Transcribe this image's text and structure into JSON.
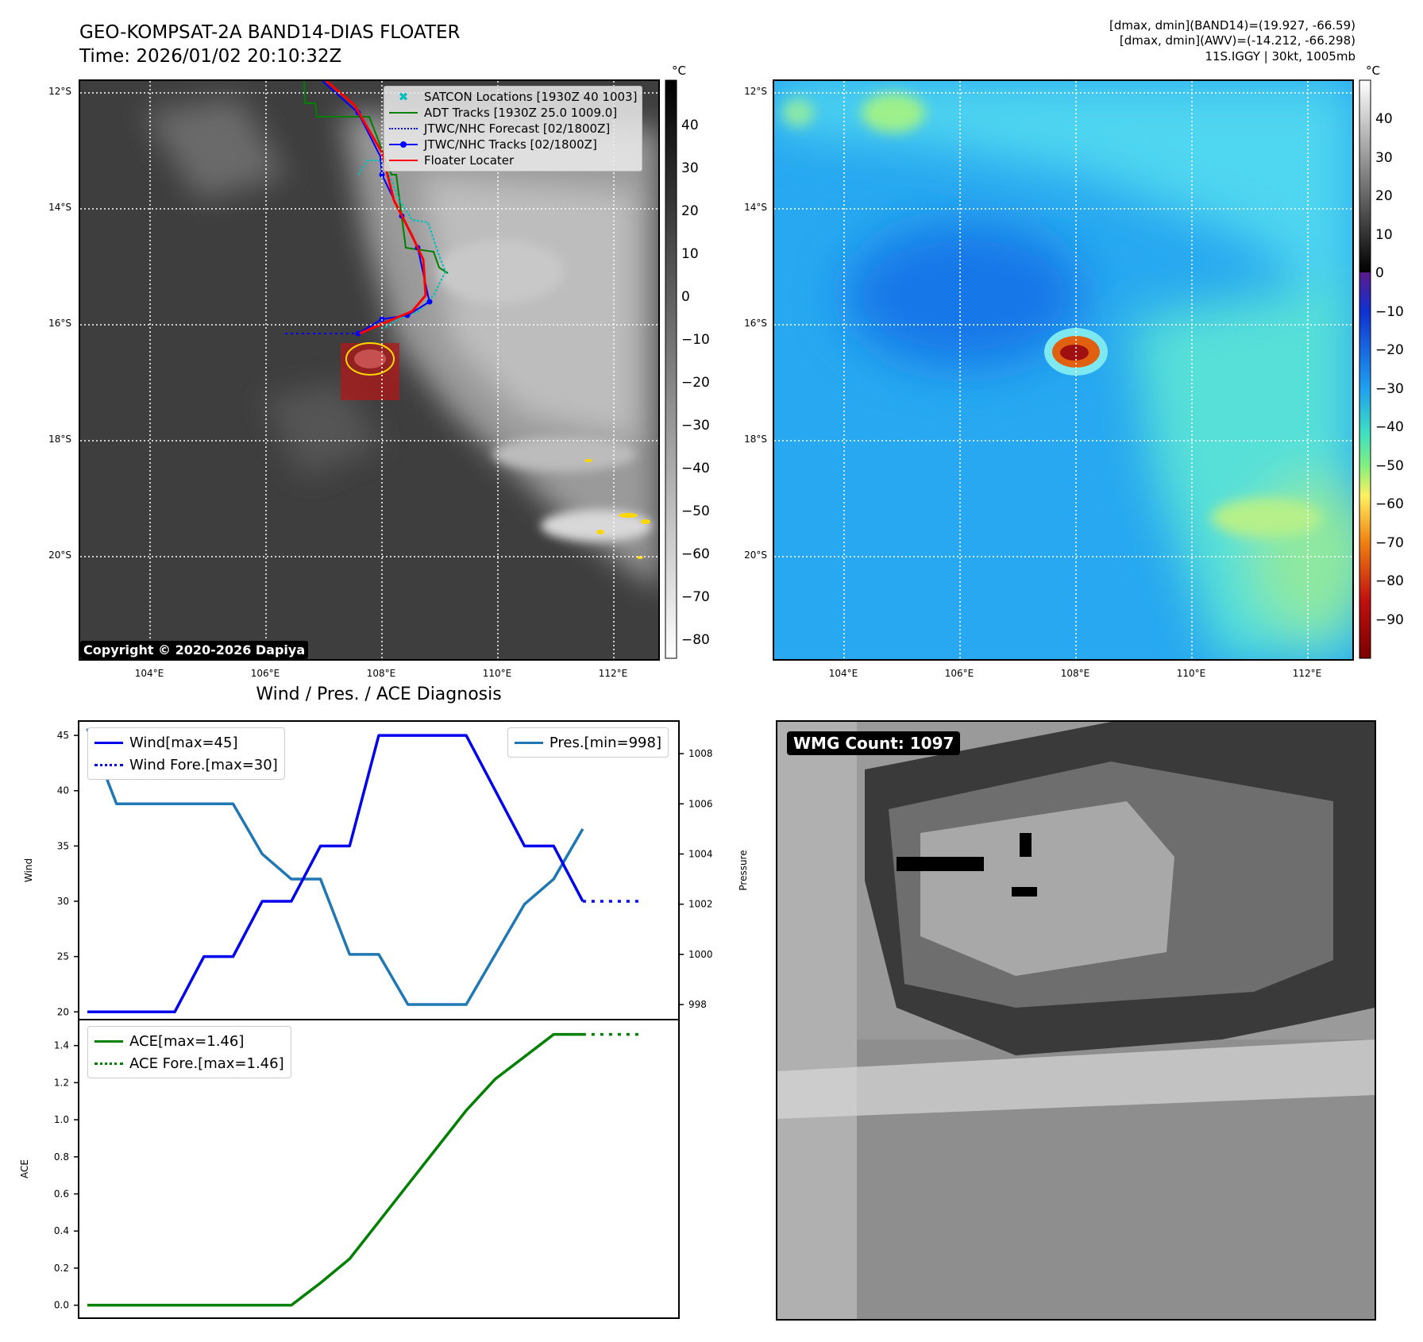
{
  "header": {
    "title_line1": "GEO-KOMPSAT-2A BAND14-DIAS FLOATER",
    "title_line2": "Time: 2026/01/02 20:10:32Z",
    "info_line1": "[dmax, dmin](BAND14)=(19.927, -66.59)",
    "info_line2": "[dmax, dmin](AWV)=(-14.212, -66.298)",
    "info_line3": "11S.IGGY | 30kt, 1005mb"
  },
  "map_axes": {
    "lat_labels": [
      "12°S",
      "14°S",
      "16°S",
      "18°S",
      "20°S"
    ],
    "lon_labels": [
      "104°E",
      "106°E",
      "108°E",
      "110°E",
      "112°E"
    ]
  },
  "left_map": {
    "legend": [
      {
        "label": "SATCON Locations [1930Z 40 1003]",
        "color": "#00bfbf",
        "style": "x-marker"
      },
      {
        "label": "ADT Tracks [1930Z 25.0 1009.0]",
        "color": "#008000",
        "style": "solid"
      },
      {
        "label": "JTWC/NHC Forecast [02/1800Z]",
        "color": "#0000ff",
        "style": "dotted"
      },
      {
        "label": "JTWC/NHC Tracks [02/1800Z]",
        "color": "#0000ff",
        "style": "solid-dot"
      },
      {
        "label": "Floater Locater",
        "color": "#ff0000",
        "style": "solid"
      }
    ],
    "copyright": "Copyright © 2020-2026 Dapiya",
    "colorbar_unit": "°C",
    "colorbar_ticks": [
      "40",
      "30",
      "20",
      "10",
      "0",
      "−10",
      "−20",
      "−30",
      "−40",
      "−50",
      "−60",
      "−70",
      "−80"
    ]
  },
  "right_map": {
    "colorbar_unit": "°C",
    "colorbar_ticks": [
      "40",
      "30",
      "20",
      "10",
      "0",
      "−10",
      "−20",
      "−30",
      "−40",
      "−50",
      "−60",
      "−70",
      "−80",
      "−90"
    ]
  },
  "chart_data": [
    {
      "type": "line",
      "title": "Wind / Pres. / ACE Diagnosis",
      "ylabel": "Wind",
      "ylim": [
        19.3,
        46.3
      ],
      "y2label": "Pressure",
      "y2lim": [
        997.4,
        1009.3
      ],
      "yticks": [
        "20",
        "25",
        "30",
        "35",
        "40",
        "45"
      ],
      "y2ticks": [
        "998",
        "1000",
        "1002",
        "1004",
        "1006",
        "1008"
      ],
      "x": [
        0,
        1,
        2,
        3,
        4,
        5,
        6,
        7,
        8,
        9,
        10,
        11,
        12,
        13,
        14,
        15,
        16,
        17
      ],
      "series": [
        {
          "name": "Wind[max=45]",
          "color": "#0000ee",
          "axis": "left",
          "values": [
            20,
            20,
            20,
            20,
            25,
            25,
            30,
            30,
            35,
            35,
            45,
            45,
            45,
            45,
            40,
            35,
            35,
            30
          ]
        },
        {
          "name": "Wind Fore.[max=30]",
          "color": "#0000ee",
          "axis": "left",
          "dashed": true,
          "x": [
            17,
            19
          ],
          "values": [
            30,
            30
          ]
        },
        {
          "name": "Pres.[min=998]",
          "color": "#1f77b4",
          "axis": "right",
          "values": [
            1009,
            1006,
            1006,
            1006,
            1006,
            1006,
            1004,
            1003,
            1003,
            1000,
            1000,
            998,
            998,
            998,
            1000,
            1002,
            1003,
            1005
          ]
        }
      ]
    },
    {
      "type": "line",
      "ylabel": "ACE",
      "ylim": [
        -0.07,
        1.54
      ],
      "yticks": [
        "0.0",
        "0.2",
        "0.4",
        "0.6",
        "0.8",
        "1.0",
        "1.2",
        "1.4"
      ],
      "x": [
        0,
        1,
        2,
        3,
        4,
        5,
        6,
        7,
        8,
        9,
        10,
        11,
        12,
        13,
        14,
        15,
        16,
        17
      ],
      "series": [
        {
          "name": "ACE[max=1.46]",
          "color": "#008000",
          "values": [
            0,
            0,
            0,
            0,
            0,
            0,
            0,
            0,
            0.12,
            0.25,
            0.45,
            0.65,
            0.85,
            1.05,
            1.22,
            1.34,
            1.46,
            1.46
          ]
        },
        {
          "name": "ACE Fore.[max=1.46]",
          "color": "#008000",
          "dashed": true,
          "x": [
            17,
            19
          ],
          "values": [
            1.46,
            1.46
          ]
        }
      ]
    }
  ],
  "wmg": {
    "label": "WMG Count: 1097"
  }
}
